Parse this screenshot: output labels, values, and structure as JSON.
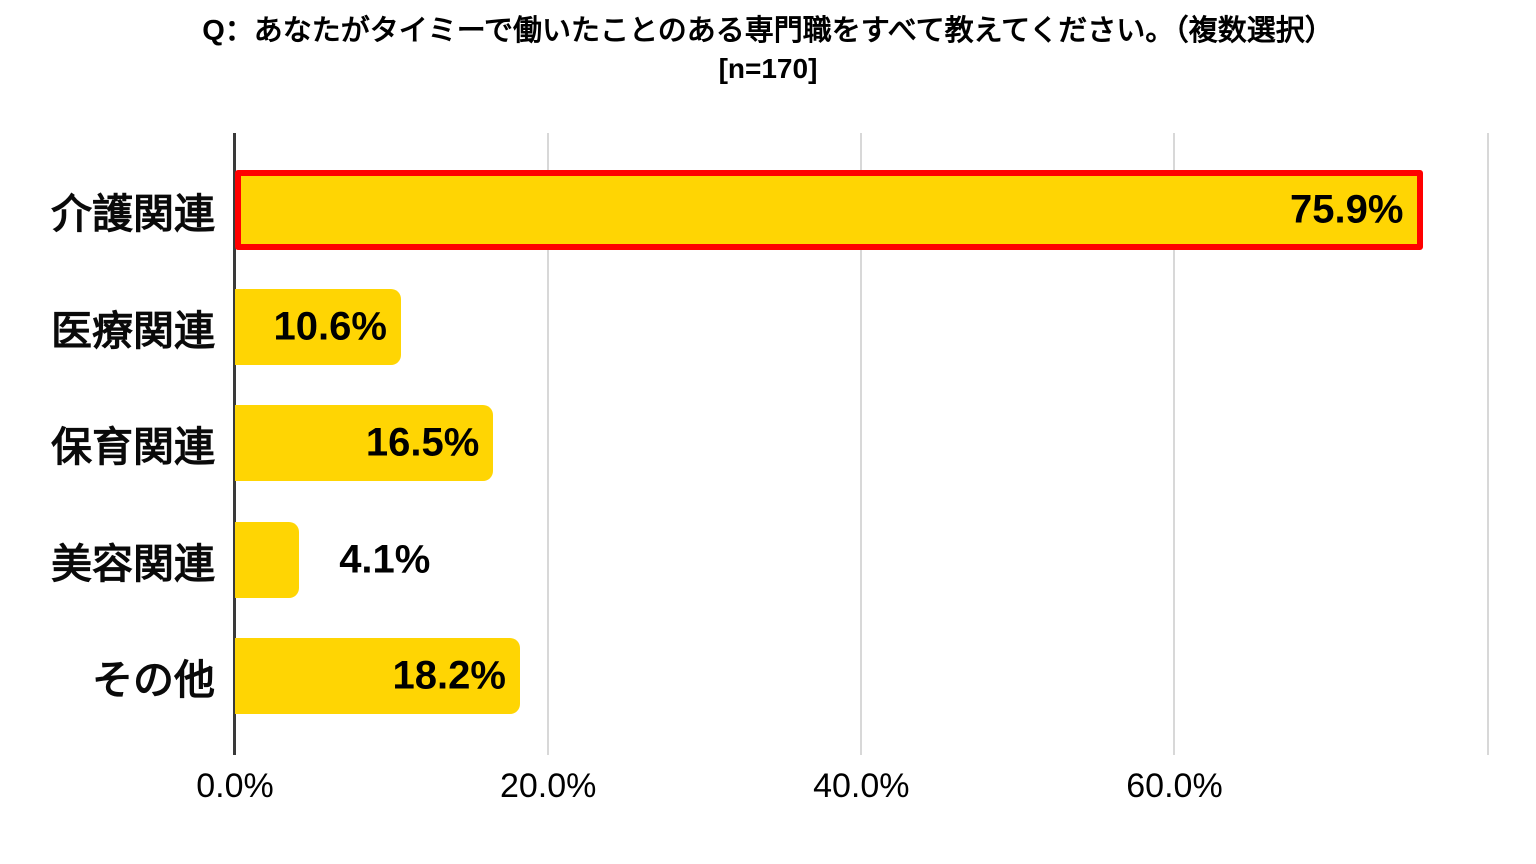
{
  "title": {
    "line1": "Q：あなたがタイミーで働いたことのある専門職をすべて教えてください。（複数選択）",
    "line2": "[n=170]"
  },
  "chart_data": {
    "type": "bar",
    "orientation": "horizontal",
    "title": "Q：あなたがタイミーで働いたことのある専門職をすべて教えてください。（複数選択）",
    "sample_size_label": "[n=170]",
    "categories": [
      "介護関連",
      "医療関連",
      "保育関連",
      "美容関連",
      "その他"
    ],
    "values": [
      75.9,
      10.6,
      16.5,
      4.1,
      18.2
    ],
    "value_labels": [
      "75.9%",
      "10.6%",
      "16.5%",
      "4.1%",
      "18.2%"
    ],
    "label_inside": [
      true,
      true,
      true,
      false,
      true
    ],
    "highlighted_category": "介護関連",
    "x_ticks": [
      {
        "pct": 0,
        "label": "0.0%"
      },
      {
        "pct": 20,
        "label": "20.0%"
      },
      {
        "pct": 40,
        "label": "40.0%"
      },
      {
        "pct": 60,
        "label": "60.0%"
      }
    ],
    "gridline_pcts": [
      20,
      40,
      60,
      80
    ],
    "xlim": [
      0,
      81.3
    ],
    "grid": "vertical",
    "legend": "none",
    "colors": {
      "bar": "#ffd503",
      "highlight_border": "#ff0000",
      "gridline": "#d8d8d8",
      "axis_line": "#3a3a3a",
      "text": "#000000",
      "background": "#ffffff"
    }
  }
}
